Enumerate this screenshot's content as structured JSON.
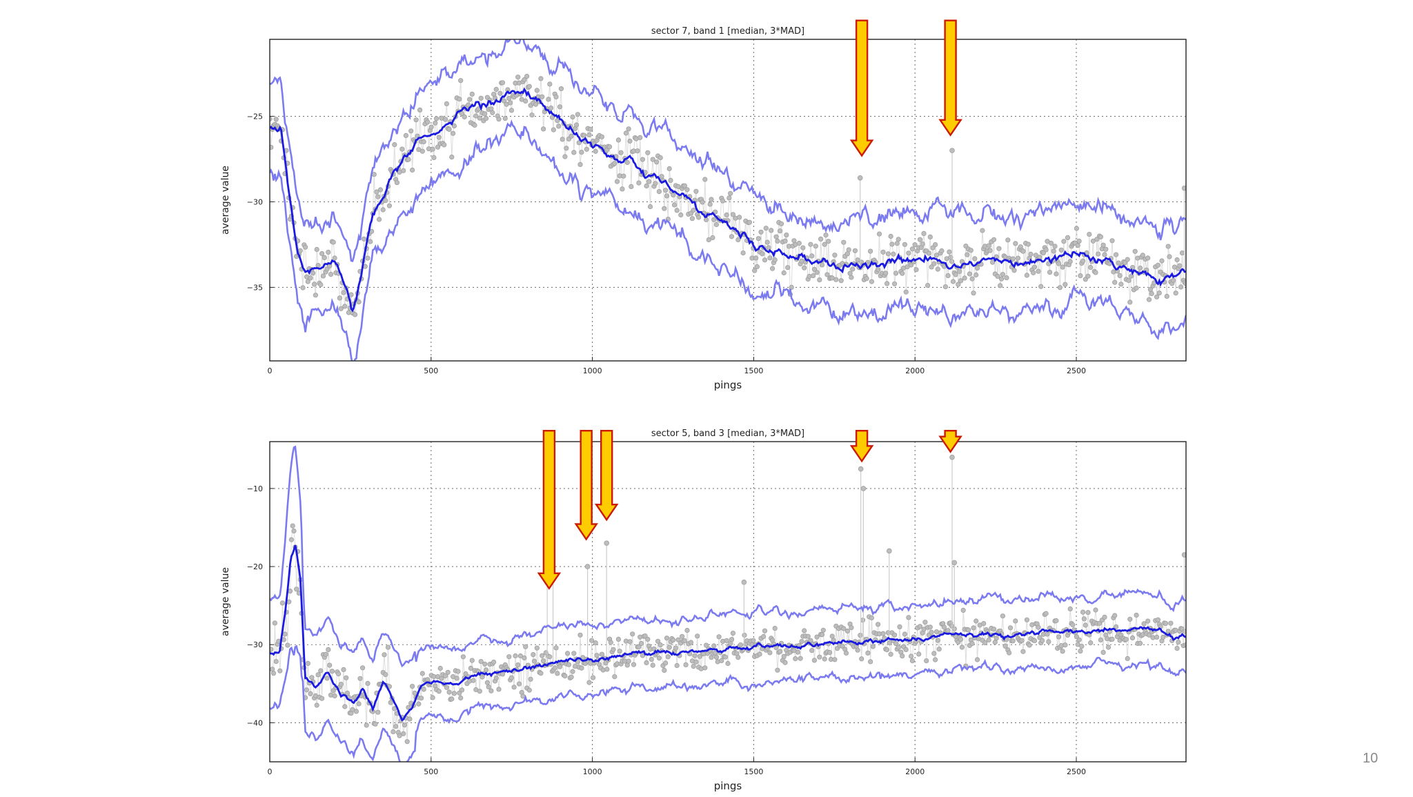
{
  "slide": {
    "number": "10"
  },
  "colors": {
    "median": "#1a1ae0",
    "mad_band": "#7b7bef",
    "samples": "#bdbdbd",
    "arrow_fill": "#ffcc00",
    "arrow_stroke": "#cc1a00",
    "grid": "#777777"
  },
  "chart_data": [
    {
      "type": "line",
      "title": "sector 7, band 1 [median, 3*MAD]",
      "xlabel": "pings",
      "ylabel": "average value",
      "xlim": [
        0,
        2840
      ],
      "ylim": [
        -39.3,
        -20.5
      ],
      "xticks": [
        0,
        500,
        1000,
        1500,
        2000,
        2500
      ],
      "xtick_labels": [
        "0",
        "500",
        "1000",
        "1500",
        "2000",
        "2500"
      ],
      "yticks": [
        -25,
        -30,
        -35
      ],
      "ytick_labels": [
        "−25",
        "−30",
        "−35"
      ],
      "grid": true,
      "median_keypoints": {
        "x": [
          0,
          35,
          60,
          85,
          110,
          150,
          180,
          210,
          235,
          255,
          280,
          320,
          360,
          420,
          480,
          520,
          600,
          660,
          720,
          780,
          830,
          870,
          920,
          980,
          1050,
          1120,
          1200,
          1280,
          1360,
          1440,
          1500,
          1560,
          1640,
          1720,
          1800,
          1880,
          1960,
          2040,
          2120,
          2200,
          2280,
          2360,
          2440,
          2520,
          2600,
          2680,
          2760,
          2840
        ],
        "y": [
          -25.8,
          -25.8,
          -29.5,
          -32.5,
          -34.0,
          -33.8,
          -33.4,
          -33.8,
          -34.8,
          -36.5,
          -34.4,
          -30.5,
          -29.3,
          -27.5,
          -26.0,
          -25.8,
          -24.8,
          -24.2,
          -24.0,
          -23.6,
          -24.0,
          -24.8,
          -25.8,
          -26.6,
          -27.3,
          -28.0,
          -28.8,
          -29.6,
          -30.6,
          -31.5,
          -32.6,
          -33.0,
          -33.3,
          -33.5,
          -33.9,
          -33.6,
          -33.3,
          -33.4,
          -33.6,
          -33.7,
          -33.5,
          -33.6,
          -33.4,
          -33.0,
          -33.7,
          -34.1,
          -34.5,
          -34.1
        ]
      },
      "series": [
        {
          "name": "median"
        },
        {
          "name": "median + 3*MAD"
        },
        {
          "name": "median - 3*MAD"
        },
        {
          "name": "samples"
        }
      ],
      "annotations": {
        "arrows": [
          {
            "x": 1835,
            "y_tip": -27.3,
            "y_top": -19.4
          },
          {
            "x": 2110,
            "y_tip": -26.1,
            "y_top": -19.4
          }
        ],
        "spikes": [
          {
            "x": 1830,
            "y": -28.6
          },
          {
            "x": 2115,
            "y": -27.0
          },
          {
            "x": 2835,
            "y": -29.2
          }
        ]
      }
    },
    {
      "type": "line",
      "title": "sector 5, band 3 [median, 3*MAD]",
      "xlabel": "pings",
      "ylabel": "average value",
      "xlim": [
        0,
        2840
      ],
      "ylim": [
        -45,
        -4
      ],
      "xticks": [
        0,
        500,
        1000,
        1500,
        2000,
        2500
      ],
      "xtick_labels": [
        "0",
        "500",
        "1000",
        "1500",
        "2000",
        "2500"
      ],
      "yticks": [
        -10,
        -20,
        -30,
        -40
      ],
      "ytick_labels": [
        "−10",
        "−20",
        "−30",
        "−40"
      ],
      "grid": true,
      "median_keypoints": {
        "x": [
          0,
          30,
          50,
          65,
          80,
          95,
          110,
          140,
          180,
          220,
          260,
          290,
          320,
          350,
          380,
          410,
          440,
          470,
          520,
          560,
          620,
          680,
          760,
          840,
          920,
          1000,
          1100,
          1200,
          1300,
          1400,
          1500,
          1600,
          1700,
          1800,
          1900,
          2000,
          2100,
          2200,
          2300,
          2400,
          2500,
          2600,
          2700,
          2760,
          2800,
          2840
        ],
        "y": [
          -31.0,
          -31.0,
          -25.0,
          -19.0,
          -17.5,
          -22.0,
          -34.5,
          -35.5,
          -33.5,
          -36.5,
          -37.5,
          -35.5,
          -38.0,
          -34.5,
          -37.0,
          -39.5,
          -38.0,
          -35.5,
          -34.8,
          -35.0,
          -34.0,
          -33.8,
          -33.2,
          -32.8,
          -32.2,
          -32.0,
          -31.5,
          -31.2,
          -30.8,
          -30.7,
          -30.3,
          -30.2,
          -29.9,
          -29.6,
          -29.5,
          -29.2,
          -28.8,
          -28.7,
          -28.7,
          -28.4,
          -28.3,
          -28.1,
          -28.0,
          -27.8,
          -29.0,
          -28.6
        ]
      },
      "series": [
        {
          "name": "median"
        },
        {
          "name": "median + 3*MAD"
        },
        {
          "name": "median - 3*MAD"
        },
        {
          "name": "samples"
        }
      ],
      "annotations": {
        "arrows": [
          {
            "x": 866,
            "y_tip": -22.8,
            "y_top": -2.6
          },
          {
            "x": 981,
            "y_tip": -16.5,
            "y_top": -2.6
          },
          {
            "x": 1044,
            "y_tip": -14.0,
            "y_top": -2.6
          },
          {
            "x": 1835,
            "y_tip": -6.5,
            "y_top": -2.6
          },
          {
            "x": 2110,
            "y_tip": -5.3,
            "y_top": -2.6
          }
        ],
        "spikes": [
          {
            "x": 860,
            "y": -22.0
          },
          {
            "x": 878,
            "y": -21.5
          },
          {
            "x": 985,
            "y": -20.0
          },
          {
            "x": 1044,
            "y": -17.0
          },
          {
            "x": 1470,
            "y": -22.0
          },
          {
            "x": 1832,
            "y": -7.5
          },
          {
            "x": 1840,
            "y": -10.0
          },
          {
            "x": 1920,
            "y": -18.0
          },
          {
            "x": 2115,
            "y": -6.0
          },
          {
            "x": 2122,
            "y": -19.5
          },
          {
            "x": 2835,
            "y": -18.5
          }
        ]
      }
    }
  ]
}
